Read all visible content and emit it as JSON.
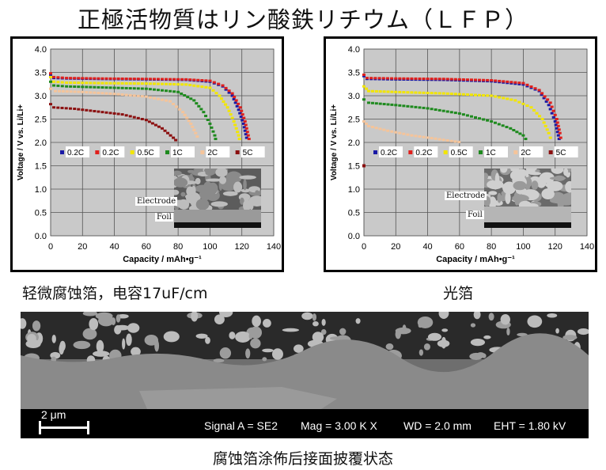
{
  "page": {
    "title": "正極活物質はリン酸鉄リチウム（ＬＦＰ）",
    "caption_left": "轻微腐蚀箔，电容17uF/cm",
    "caption_right": "光箔",
    "caption_bottom": "腐蚀箔涂佈后接面披覆状态"
  },
  "sem": {
    "scale_label": "2 μm",
    "signal": "Signal A = SE2",
    "mag": "Mag =   3.00 K X",
    "wd": "WD =  2.0 mm",
    "eht": "EHT =  1.80 kV"
  },
  "insets": {
    "electrode_label": "Electrode",
    "foil_label": "Foil"
  },
  "chart_data": [
    {
      "type": "scatter",
      "title": "",
      "xlabel": "Capacity  / mAh•g⁻¹",
      "ylabel": "Voltage / V vs. Li/Li+",
      "xlim": [
        0,
        140
      ],
      "ylim": [
        0.0,
        4.0
      ],
      "xticks": [
        0,
        20,
        40,
        60,
        80,
        100,
        120,
        140
      ],
      "yticks": [
        "0.0",
        "0.5",
        "1.0",
        "1.5",
        "2.0",
        "2.5",
        "3.0",
        "3.5",
        "4.0"
      ],
      "grid": true,
      "legend_position": "middle",
      "series": [
        {
          "name": "0.2C",
          "color": "#1a1aa6",
          "points": [
            [
              0,
              3.45
            ],
            [
              2,
              3.38
            ],
            [
              10,
              3.37
            ],
            [
              30,
              3.36
            ],
            [
              60,
              3.35
            ],
            [
              85,
              3.34
            ],
            [
              100,
              3.3
            ],
            [
              108,
              3.2
            ],
            [
              114,
              3.0
            ],
            [
              118,
              2.7
            ],
            [
              121,
              2.4
            ],
            [
              123,
              2.1
            ],
            [
              124,
              2.0
            ]
          ]
        },
        {
          "name": "0.2C",
          "color": "#e0201c",
          "points": [
            [
              0,
              3.48
            ],
            [
              2,
              3.4
            ],
            [
              10,
              3.38
            ],
            [
              30,
              3.37
            ],
            [
              60,
              3.36
            ],
            [
              85,
              3.35
            ],
            [
              100,
              3.32
            ],
            [
              108,
              3.22
            ],
            [
              114,
              3.05
            ],
            [
              119,
              2.75
            ],
            [
              122,
              2.45
            ],
            [
              124,
              2.15
            ],
            [
              125,
              2.0
            ]
          ]
        },
        {
          "name": "0.5C",
          "color": "#f2e600",
          "points": [
            [
              0,
              3.4
            ],
            [
              2,
              3.3
            ],
            [
              10,
              3.28
            ],
            [
              30,
              3.27
            ],
            [
              60,
              3.26
            ],
            [
              85,
              3.24
            ],
            [
              100,
              3.17
            ],
            [
              106,
              3.0
            ],
            [
              111,
              2.75
            ],
            [
              115,
              2.45
            ],
            [
              118,
              2.15
            ],
            [
              119,
              2.0
            ]
          ]
        },
        {
          "name": "1C",
          "color": "#1e8a1e",
          "points": [
            [
              0,
              3.3
            ],
            [
              2,
              3.22
            ],
            [
              10,
              3.2
            ],
            [
              30,
              3.18
            ],
            [
              60,
              3.15
            ],
            [
              80,
              3.08
            ],
            [
              90,
              2.9
            ],
            [
              96,
              2.65
            ],
            [
              100,
              2.4
            ],
            [
              103,
              2.15
            ],
            [
              104,
              2.0
            ]
          ]
        },
        {
          "name": "2C",
          "color": "#f5c49a",
          "points": [
            [
              0,
              3.15
            ],
            [
              3,
              3.1
            ],
            [
              20,
              3.08
            ],
            [
              40,
              3.04
            ],
            [
              60,
              2.98
            ],
            [
              75,
              2.88
            ],
            [
              83,
              2.65
            ],
            [
              88,
              2.4
            ],
            [
              91,
              2.2
            ],
            [
              93,
              2.05
            ]
          ]
        },
        {
          "name": "5C",
          "color": "#8b1010",
          "points": [
            [
              0,
              2.82
            ],
            [
              2,
              2.75
            ],
            [
              15,
              2.72
            ],
            [
              30,
              2.66
            ],
            [
              45,
              2.6
            ],
            [
              60,
              2.48
            ],
            [
              70,
              2.3
            ],
            [
              77,
              2.1
            ],
            [
              80,
              2.0
            ]
          ]
        }
      ]
    },
    {
      "type": "scatter",
      "title": "",
      "xlabel": "Capacity  / mAh•g⁻¹",
      "ylabel": "Voltage / V vs. Li/Li+",
      "xlim": [
        0,
        140
      ],
      "ylim": [
        0.0,
        4.0
      ],
      "xticks": [
        0,
        20,
        40,
        60,
        80,
        100,
        120,
        140
      ],
      "yticks": [
        "0.0",
        "0.5",
        "1.0",
        "1.5",
        "2.0",
        "2.5",
        "3.0",
        "3.5",
        "4.0"
      ],
      "grid": true,
      "legend_position": "middle",
      "series": [
        {
          "name": "0.2C",
          "color": "#1a1aa6",
          "points": [
            [
              0,
              3.42
            ],
            [
              2,
              3.36
            ],
            [
              20,
              3.35
            ],
            [
              50,
              3.34
            ],
            [
              80,
              3.31
            ],
            [
              100,
              3.24
            ],
            [
              110,
              3.1
            ],
            [
              116,
              2.8
            ],
            [
              120,
              2.45
            ],
            [
              122,
              2.15
            ],
            [
              123,
              2.0
            ]
          ]
        },
        {
          "name": "0.2C",
          "color": "#e0201c",
          "points": [
            [
              0,
              3.45
            ],
            [
              2,
              3.38
            ],
            [
              20,
              3.37
            ],
            [
              50,
              3.36
            ],
            [
              80,
              3.33
            ],
            [
              100,
              3.27
            ],
            [
              110,
              3.12
            ],
            [
              117,
              2.85
            ],
            [
              121,
              2.5
            ],
            [
              123,
              2.2
            ],
            [
              124,
              2.0
            ]
          ]
        },
        {
          "name": "0.5C",
          "color": "#f2e600",
          "points": [
            [
              0,
              3.2
            ],
            [
              3,
              3.1
            ],
            [
              20,
              3.08
            ],
            [
              50,
              3.05
            ],
            [
              80,
              3.0
            ],
            [
              95,
              2.9
            ],
            [
              105,
              2.75
            ],
            [
              112,
              2.5
            ],
            [
              116,
              2.2
            ],
            [
              118,
              2.0
            ]
          ]
        },
        {
          "name": "1C",
          "color": "#1e8a1e",
          "points": [
            [
              0,
              2.92
            ],
            [
              3,
              2.85
            ],
            [
              20,
              2.8
            ],
            [
              40,
              2.73
            ],
            [
              60,
              2.62
            ],
            [
              80,
              2.45
            ],
            [
              92,
              2.3
            ],
            [
              100,
              2.15
            ],
            [
              103,
              2.0
            ]
          ]
        },
        {
          "name": "2C",
          "color": "#f5c49a",
          "points": [
            [
              0,
              2.45
            ],
            [
              3,
              2.35
            ],
            [
              15,
              2.25
            ],
            [
              30,
              2.15
            ],
            [
              45,
              2.08
            ],
            [
              55,
              2.03
            ],
            [
              62,
              2.0
            ]
          ]
        },
        {
          "name": "5C",
          "color": "#8b1010",
          "points": [
            [
              0,
              1.5
            ]
          ]
        }
      ]
    }
  ]
}
